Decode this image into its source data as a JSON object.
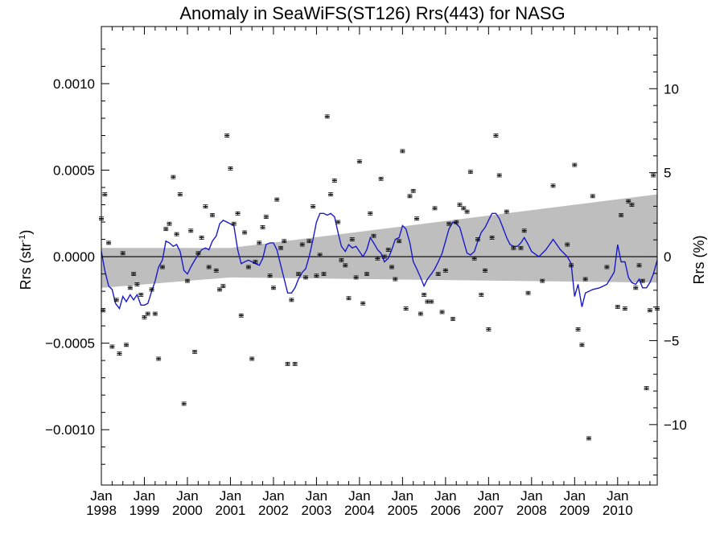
{
  "chart_data": {
    "type": "scatter",
    "title": "Anomaly in SeaWiFS(ST126) Rrs(443) for NASG",
    "ylabel_left": {
      "base": "Rrs (str",
      "sup": "-1",
      "close": ")"
    },
    "ylabel_right": "Rrs (%)",
    "x_range": [
      1998.0,
      2010.92
    ],
    "y_range": [
      -0.00132,
      0.00133
    ],
    "y_right_range": [
      -13.6,
      13.7
    ],
    "x_ticks": [
      {
        "x": 1998,
        "month": "Jan",
        "year": "1998"
      },
      {
        "x": 1999,
        "month": "Jan",
        "year": "1999"
      },
      {
        "x": 2000,
        "month": "Jan",
        "year": "2000"
      },
      {
        "x": 2001,
        "month": "Jan",
        "year": "2001"
      },
      {
        "x": 2002,
        "month": "Jan",
        "year": "2002"
      },
      {
        "x": 2003,
        "month": "Jan",
        "year": "2003"
      },
      {
        "x": 2004,
        "month": "Jan",
        "year": "2004"
      },
      {
        "x": 2005,
        "month": "Jan",
        "year": "2005"
      },
      {
        "x": 2006,
        "month": "Jan",
        "year": "2006"
      },
      {
        "x": 2007,
        "month": "Jan",
        "year": "2007"
      },
      {
        "x": 2008,
        "month": "Jan",
        "year": "2008"
      },
      {
        "x": 2009,
        "month": "Jan",
        "year": "2009"
      },
      {
        "x": 2010,
        "month": "Jan",
        "year": "2010"
      }
    ],
    "y_ticks_left": [
      {
        "v": 0.001,
        "label": "0.0010"
      },
      {
        "v": 0.0005,
        "label": "0.0005"
      },
      {
        "v": 0.0,
        "label": "0.0000"
      },
      {
        "v": -0.0005,
        "label": "−0.0005"
      },
      {
        "v": -0.001,
        "label": "−0.0010"
      }
    ],
    "y_ticks_right": [
      {
        "v": 10,
        "label": "10"
      },
      {
        "v": 5,
        "label": "5"
      },
      {
        "v": 0,
        "label": "0"
      },
      {
        "v": -5,
        "label": "−5"
      },
      {
        "v": -10,
        "label": "−10"
      }
    ],
    "zero_line": 0.0,
    "trend_band": {
      "x": [
        1998.0,
        2001.0,
        2010.92
      ],
      "upper": [
        5e-05,
        5e-05,
        0.00036
      ],
      "lower": [
        -0.00018,
        -0.00012,
        -0.00015
      ]
    },
    "points": [
      [
        1998.0,
        0.00022
      ],
      [
        1998.04,
        -0.00031
      ],
      [
        1998.08,
        0.00036
      ],
      [
        1998.17,
        8e-05
      ],
      [
        1998.25,
        -0.00052
      ],
      [
        1998.35,
        -0.00025
      ],
      [
        1998.42,
        -0.00056
      ],
      [
        1998.5,
        2e-05
      ],
      [
        1998.58,
        -0.00051
      ],
      [
        1998.67,
        -0.00018
      ],
      [
        1998.75,
        -0.0001
      ],
      [
        1998.83,
        -0.00016
      ],
      [
        1998.92,
        -0.00022
      ],
      [
        1999.0,
        -0.00035
      ],
      [
        1999.08,
        -0.00033
      ],
      [
        1999.17,
        -0.00019
      ],
      [
        1999.25,
        -0.00033
      ],
      [
        1999.33,
        -0.00059
      ],
      [
        1999.42,
        -6e-05
      ],
      [
        1999.5,
        0.00016
      ],
      [
        1999.58,
        0.00019
      ],
      [
        1999.67,
        0.00046
      ],
      [
        1999.75,
        0.00013
      ],
      [
        1999.83,
        0.00036
      ],
      [
        1999.92,
        -0.00085
      ],
      [
        2000.0,
        -0.00014
      ],
      [
        2000.08,
        0.00015
      ],
      [
        2000.17,
        -0.00055
      ],
      [
        2000.25,
        2e-05
      ],
      [
        2000.33,
        0.00011
      ],
      [
        2000.42,
        0.00029
      ],
      [
        2000.5,
        -6e-05
      ],
      [
        2000.58,
        0.00024
      ],
      [
        2000.67,
        -8e-05
      ],
      [
        2000.75,
        -0.00019
      ],
      [
        2000.83,
        -0.00017
      ],
      [
        2000.92,
        0.0007
      ],
      [
        2001.0,
        0.00051
      ],
      [
        2001.08,
        0.00019
      ],
      [
        2001.17,
        0.00025
      ],
      [
        2001.25,
        -0.00034
      ],
      [
        2001.33,
        0.00014
      ],
      [
        2001.42,
        -6e-05
      ],
      [
        2001.5,
        -0.00059
      ],
      [
        2001.58,
        -3e-05
      ],
      [
        2001.67,
        8e-05
      ],
      [
        2001.75,
        0.00017
      ],
      [
        2001.83,
        0.00023
      ],
      [
        2001.92,
        -0.00011
      ],
      [
        2002.0,
        -0.00018
      ],
      [
        2002.08,
        0.00033
      ],
      [
        2002.17,
        5e-05
      ],
      [
        2002.25,
        9e-05
      ],
      [
        2002.33,
        -0.00062
      ],
      [
        2002.42,
        -0.00025
      ],
      [
        2002.5,
        -0.00062
      ],
      [
        2002.58,
        -0.0001
      ],
      [
        2002.67,
        7e-05
      ],
      [
        2002.75,
        -0.00012
      ],
      [
        2002.83,
        9e-05
      ],
      [
        2002.92,
        0.00029
      ],
      [
        2003.0,
        -0.00011
      ],
      [
        2003.08,
        1e-05
      ],
      [
        2003.17,
        -0.0001
      ],
      [
        2003.25,
        0.00081
      ],
      [
        2003.33,
        0.00036
      ],
      [
        2003.42,
        0.00044
      ],
      [
        2003.5,
        0.0002
      ],
      [
        2003.58,
        -2e-05
      ],
      [
        2003.67,
        -5e-05
      ],
      [
        2003.75,
        -0.00024
      ],
      [
        2003.83,
        0.0001
      ],
      [
        2003.92,
        -0.00012
      ],
      [
        2004.0,
        0.00055
      ],
      [
        2004.08,
        -0.00027
      ],
      [
        2004.17,
        -0.0001
      ],
      [
        2004.25,
        0.00025
      ],
      [
        2004.33,
        0.00012
      ],
      [
        2004.42,
        -1e-05
      ],
      [
        2004.5,
        0.00045
      ],
      [
        2004.58,
        0.0
      ],
      [
        2004.67,
        4e-05
      ],
      [
        2004.75,
        -6e-05
      ],
      [
        2004.83,
        -0.00013
      ],
      [
        2004.92,
        9e-05
      ],
      [
        2005.0,
        0.00061
      ],
      [
        2005.08,
        -0.0003
      ],
      [
        2005.17,
        0.00035
      ],
      [
        2005.25,
        0.00038
      ],
      [
        2005.33,
        0.00022
      ],
      [
        2005.42,
        -0.00033
      ],
      [
        2005.5,
        -0.00022
      ],
      [
        2005.58,
        -0.00026
      ],
      [
        2005.67,
        -0.00026
      ],
      [
        2005.75,
        0.00028
      ],
      [
        2005.83,
        -0.0001
      ],
      [
        2005.92,
        -0.00032
      ],
      [
        2006.0,
        -8e-05
      ],
      [
        2006.08,
        0.00019
      ],
      [
        2006.17,
        -0.00036
      ],
      [
        2006.25,
        0.0002
      ],
      [
        2006.33,
        0.0003
      ],
      [
        2006.42,
        0.00028
      ],
      [
        2006.5,
        0.00026
      ],
      [
        2006.58,
        0.00049
      ],
      [
        2006.67,
        -1e-05
      ],
      [
        2006.75,
        0.0001
      ],
      [
        2006.83,
        -0.00022
      ],
      [
        2006.92,
        -8e-05
      ],
      [
        2007.0,
        -0.00042
      ],
      [
        2007.08,
        0.00011
      ],
      [
        2007.17,
        0.0007
      ],
      [
        2007.25,
        0.00047
      ],
      [
        2007.42,
        0.00026
      ],
      [
        2007.58,
        5e-05
      ],
      [
        2007.75,
        5e-05
      ],
      [
        2007.83,
        0.00015
      ],
      [
        2007.92,
        -0.00021
      ],
      [
        2008.25,
        -0.00014
      ],
      [
        2008.5,
        0.00041
      ],
      [
        2008.83,
        7e-05
      ],
      [
        2008.92,
        -5e-05
      ],
      [
        2009.0,
        0.00053
      ],
      [
        2009.08,
        -0.00042
      ],
      [
        2009.17,
        -0.00051
      ],
      [
        2009.25,
        -0.00013
      ],
      [
        2009.33,
        -0.00105
      ],
      [
        2009.42,
        0.00035
      ],
      [
        2009.75,
        -6e-05
      ],
      [
        2010.0,
        -0.00029
      ],
      [
        2010.08,
        0.00024
      ],
      [
        2010.17,
        -0.0003
      ],
      [
        2010.25,
        0.00032
      ],
      [
        2010.33,
        0.0003
      ],
      [
        2010.42,
        -0.00018
      ],
      [
        2010.5,
        -5e-05
      ],
      [
        2010.58,
        -0.00014
      ],
      [
        2010.67,
        -0.00076
      ],
      [
        2010.75,
        -0.00031
      ],
      [
        2010.83,
        0.00047
      ],
      [
        2010.92,
        -0.0003
      ]
    ],
    "smooth_line": [
      [
        1998.0,
        3e-05
      ],
      [
        1998.08,
        -8e-05
      ],
      [
        1998.17,
        -0.00017
      ],
      [
        1998.25,
        -0.00019
      ],
      [
        1998.33,
        -0.00027
      ],
      [
        1998.42,
        -0.0003
      ],
      [
        1998.5,
        -0.00023
      ],
      [
        1998.58,
        -0.00026
      ],
      [
        1998.67,
        -0.00022
      ],
      [
        1998.75,
        -0.00025
      ],
      [
        1998.83,
        -0.00022
      ],
      [
        1998.92,
        -0.00028
      ],
      [
        1999.0,
        -0.00028
      ],
      [
        1999.08,
        -0.00027
      ],
      [
        1999.17,
        -0.0002
      ],
      [
        1999.25,
        -0.00014
      ],
      [
        1999.33,
        -6e-05
      ],
      [
        1999.42,
        -2e-05
      ],
      [
        1999.5,
        9e-05
      ],
      [
        1999.58,
        8e-05
      ],
      [
        1999.67,
        6e-05
      ],
      [
        1999.75,
        7e-05
      ],
      [
        1999.83,
        3e-05
      ],
      [
        1999.92,
        -8e-05
      ],
      [
        2000.0,
        -0.0001
      ],
      [
        2000.08,
        -6e-05
      ],
      [
        2000.17,
        -2e-05
      ],
      [
        2000.25,
        1e-05
      ],
      [
        2000.33,
        4e-05
      ],
      [
        2000.42,
        5e-05
      ],
      [
        2000.5,
        4e-05
      ],
      [
        2000.58,
        9e-05
      ],
      [
        2000.67,
        0.00012
      ],
      [
        2000.75,
        0.00019
      ],
      [
        2000.83,
        0.00021
      ],
      [
        2000.92,
        0.0002
      ],
      [
        2001.0,
        0.00019
      ],
      [
        2001.08,
        0.00018
      ],
      [
        2001.17,
        4e-05
      ],
      [
        2001.25,
        -4e-05
      ],
      [
        2001.33,
        -3e-05
      ],
      [
        2001.42,
        -2e-05
      ],
      [
        2001.5,
        -3e-05
      ],
      [
        2001.58,
        -4e-05
      ],
      [
        2001.67,
        -5e-05
      ],
      [
        2001.75,
        -1e-05
      ],
      [
        2001.83,
        7e-05
      ],
      [
        2001.92,
        8e-05
      ],
      [
        2002.0,
        8e-05
      ],
      [
        2002.08,
        4e-05
      ],
      [
        2002.17,
        -5e-05
      ],
      [
        2002.25,
        -0.00013
      ],
      [
        2002.33,
        -0.00021
      ],
      [
        2002.42,
        -0.00021
      ],
      [
        2002.5,
        -0.00018
      ],
      [
        2002.58,
        -0.00013
      ],
      [
        2002.67,
        -9e-05
      ],
      [
        2002.75,
        -7e-05
      ],
      [
        2002.83,
        0.0
      ],
      [
        2002.92,
        0.0001
      ],
      [
        2003.0,
        0.0002
      ],
      [
        2003.08,
        0.00025
      ],
      [
        2003.17,
        0.00025
      ],
      [
        2003.25,
        0.00024
      ],
      [
        2003.33,
        0.00025
      ],
      [
        2003.42,
        0.00023
      ],
      [
        2003.5,
        0.00014
      ],
      [
        2003.58,
        6e-05
      ],
      [
        2003.67,
        3e-05
      ],
      [
        2003.75,
        7e-05
      ],
      [
        2003.83,
        5e-05
      ],
      [
        2003.92,
        6e-05
      ],
      [
        2004.0,
        3e-05
      ],
      [
        2004.08,
        0.0
      ],
      [
        2004.17,
        4e-05
      ],
      [
        2004.25,
        0.00011
      ],
      [
        2004.33,
        8e-05
      ],
      [
        2004.42,
        4e-05
      ],
      [
        2004.5,
        2e-05
      ],
      [
        2004.58,
        -3e-05
      ],
      [
        2004.67,
        -1e-05
      ],
      [
        2004.75,
        4e-05
      ],
      [
        2004.83,
        0.0001
      ],
      [
        2004.92,
        0.00011
      ],
      [
        2005.0,
        0.00018
      ],
      [
        2005.08,
        0.00016
      ],
      [
        2005.17,
        8e-05
      ],
      [
        2005.25,
        -3e-05
      ],
      [
        2005.33,
        -7e-05
      ],
      [
        2005.42,
        -0.00012
      ],
      [
        2005.5,
        -0.00017
      ],
      [
        2005.58,
        -0.00013
      ],
      [
        2005.67,
        -0.0001
      ],
      [
        2005.75,
        -7e-05
      ],
      [
        2005.83,
        -3e-05
      ],
      [
        2005.92,
        2e-05
      ],
      [
        2006.0,
        9e-05
      ],
      [
        2006.08,
        0.00016
      ],
      [
        2006.17,
        0.0002
      ],
      [
        2006.25,
        0.00019
      ],
      [
        2006.33,
        0.00017
      ],
      [
        2006.42,
        9e-05
      ],
      [
        2006.5,
        2e-05
      ],
      [
        2006.58,
        1e-05
      ],
      [
        2006.67,
        3e-05
      ],
      [
        2006.75,
        9e-05
      ],
      [
        2006.83,
        0.00014
      ],
      [
        2006.92,
        0.00017
      ],
      [
        2007.0,
        0.00021
      ],
      [
        2007.08,
        0.00025
      ],
      [
        2007.17,
        0.00025
      ],
      [
        2007.25,
        0.00022
      ],
      [
        2007.33,
        0.00017
      ],
      [
        2007.42,
        0.00011
      ],
      [
        2007.5,
        7e-05
      ],
      [
        2007.58,
        6e-05
      ],
      [
        2007.67,
        6e-05
      ],
      [
        2007.75,
        8e-05
      ],
      [
        2007.83,
        0.00011
      ],
      [
        2007.92,
        7e-05
      ],
      [
        2008.0,
        3e-05
      ],
      [
        2008.17,
        0.0
      ],
      [
        2008.33,
        4e-05
      ],
      [
        2008.5,
        0.0001
      ],
      [
        2008.67,
        4e-05
      ],
      [
        2008.83,
        0.0
      ],
      [
        2008.92,
        -4e-05
      ],
      [
        2009.0,
        -0.00023
      ],
      [
        2009.08,
        -0.00016
      ],
      [
        2009.17,
        -0.00029
      ],
      [
        2009.25,
        -0.00021
      ],
      [
        2009.42,
        -0.00019
      ],
      [
        2009.58,
        -0.00018
      ],
      [
        2009.75,
        -0.00016
      ],
      [
        2009.92,
        -9e-05
      ],
      [
        2010.0,
        7e-05
      ],
      [
        2010.08,
        -3e-05
      ],
      [
        2010.17,
        -3e-05
      ],
      [
        2010.25,
        -0.00012
      ],
      [
        2010.33,
        -0.00015
      ],
      [
        2010.42,
        -0.00016
      ],
      [
        2010.5,
        -0.00013
      ],
      [
        2010.58,
        -0.00018
      ],
      [
        2010.67,
        -0.00018
      ],
      [
        2010.75,
        -0.00015
      ],
      [
        2010.83,
        -0.0001
      ],
      [
        2010.92,
        -2e-05
      ]
    ],
    "colors": {
      "band": "#bebebe",
      "line": "#1a1acc",
      "points": "#000000",
      "axis": "#000000"
    },
    "grid": false
  }
}
